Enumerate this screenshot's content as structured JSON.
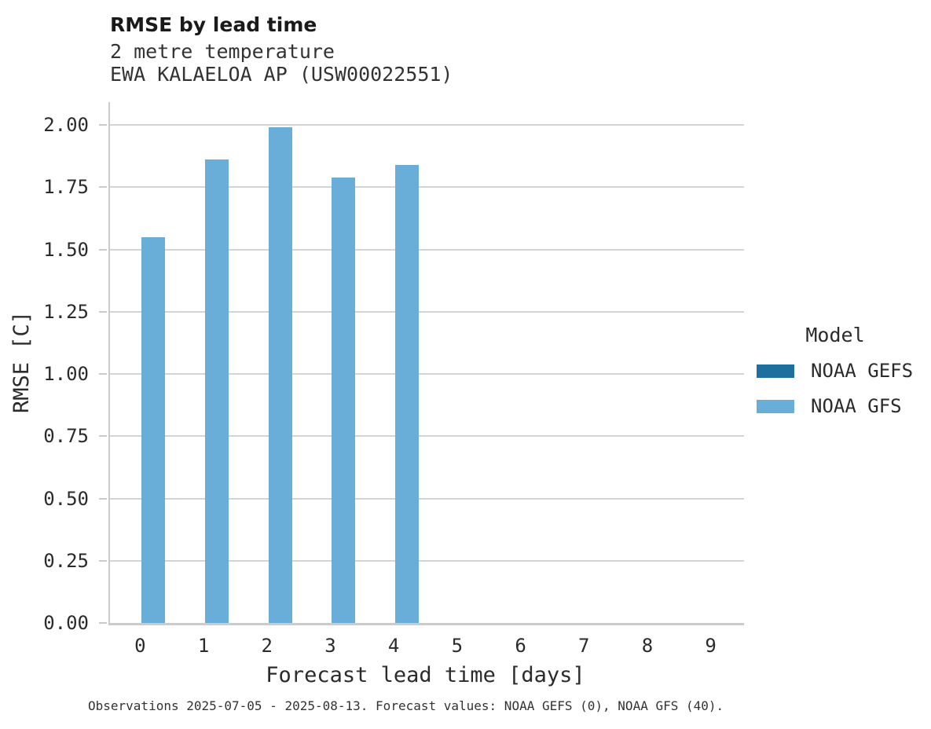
{
  "chart_data": {
    "type": "bar",
    "title": "RMSE by lead time",
    "subtitle": "2 metre temperature",
    "subtitle2": "EWA KALAELOA AP (USW00022551)",
    "xlabel": "Forecast lead time [days]",
    "ylabel": "RMSE [C]",
    "categories": [
      "0",
      "1",
      "2",
      "3",
      "4",
      "5",
      "6",
      "7",
      "8",
      "9"
    ],
    "series": [
      {
        "name": "NOAA GEFS",
        "color": "#1d6f9e",
        "values": [
          null,
          null,
          null,
          null,
          null,
          null,
          null,
          null,
          null,
          null
        ]
      },
      {
        "name": "NOAA GFS",
        "color": "#68aed8",
        "values": [
          1.55,
          1.86,
          1.99,
          1.79,
          1.84,
          null,
          null,
          null,
          null,
          null
        ]
      }
    ],
    "ylim": [
      0,
      2.09
    ],
    "ytick_step": 0.25,
    "ytick_labels": [
      "0.00",
      "0.25",
      "0.50",
      "0.75",
      "1.00",
      "1.25",
      "1.50",
      "1.75",
      "2.00"
    ],
    "grid": "horizontal",
    "legend_title": "Model",
    "legend_position": "right"
  },
  "footer": {
    "caption": "Observations 2025-07-05 - 2025-08-13. Forecast values: NOAA GEFS (0), NOAA GFS (40)."
  },
  "colors": {
    "grid": "#d4d4d4",
    "spine": "#cbcbcb",
    "text": "#2b2b2b"
  }
}
